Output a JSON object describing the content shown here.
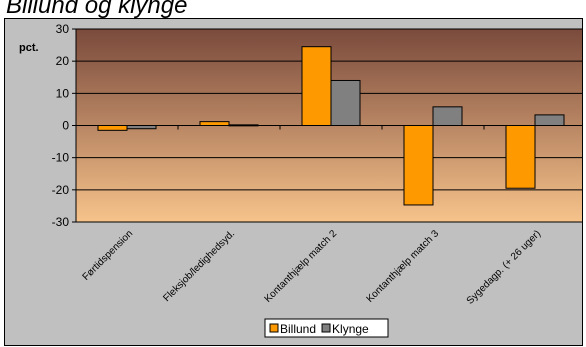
{
  "chart_title": "Billund og klynge",
  "chart_data": {
    "type": "bar",
    "ylabel": "pct.",
    "ylim": [
      -30,
      30
    ],
    "yticks": [
      30,
      20,
      10,
      0,
      -10,
      -20,
      -30
    ],
    "grid": true,
    "legend_position": "bottom",
    "categories": [
      "Førtidspension",
      "Fleksjob/ledighedsyd.",
      "Kontanthjælp match 2",
      "Kontanthjælp match 3",
      "Sygedagp. (+ 26 uger)"
    ],
    "series": [
      {
        "name": "Billund",
        "values": [
          -1.5,
          1.2,
          24.5,
          -24.7,
          -19.5
        ]
      },
      {
        "name": "Klynge",
        "values": [
          -1.0,
          0.2,
          14.0,
          5.8,
          3.3
        ]
      }
    ]
  },
  "colors": {
    "billund": "#ff9900",
    "klynge": "#808080",
    "plot_top": "#7a4a3c",
    "plot_bottom": "#f7c38b",
    "frame_bg": "#c0c0c0"
  }
}
